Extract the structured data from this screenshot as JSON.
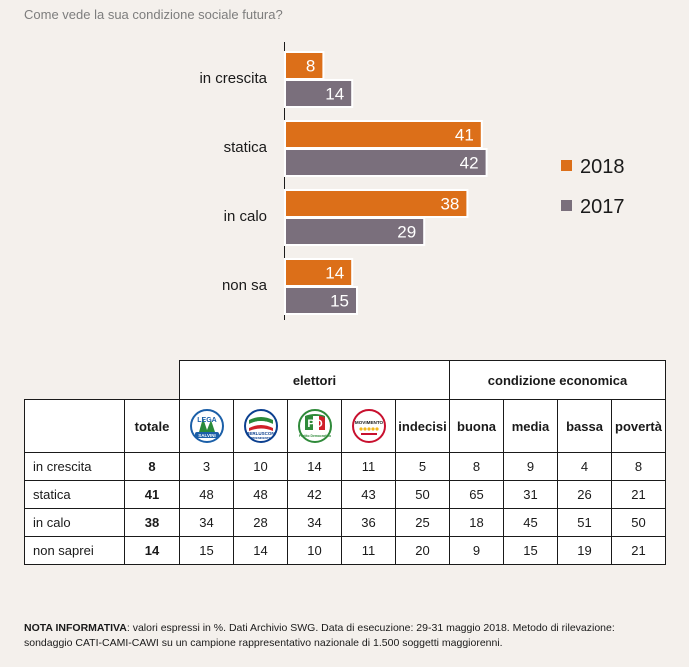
{
  "title": "Come vede la sua condizione sociale futura?",
  "chart_data": {
    "type": "bar",
    "orientation": "horizontal",
    "categories": [
      "in crescita",
      "statica",
      "in calo",
      "non sa"
    ],
    "series": [
      {
        "name": "2018",
        "values": [
          8,
          41,
          38,
          14
        ],
        "color": "#dc6f19"
      },
      {
        "name": "2017",
        "values": [
          14,
          42,
          29,
          15
        ],
        "color": "#7a6f7c"
      }
    ],
    "xlim": [
      0,
      45
    ],
    "grid": false,
    "legend": "right"
  },
  "table": {
    "group_headers": {
      "elettori": "elettori",
      "condizione": "condizione economica"
    },
    "columns": {
      "totale": "totale",
      "parties": [
        {
          "logo": "lega-salvini-logo",
          "text": "LEGA",
          "sub": "SALVINI",
          "color": "#1b5fa8"
        },
        {
          "logo": "forza-italia-logo",
          "text": "BERLUSCONI",
          "sub": "PRESIDENTE",
          "color": "#0b3f8f"
        },
        {
          "logo": "partito-democratico-logo",
          "text": "PD",
          "sub": "Partito Democratico",
          "color": "#2f8a3a"
        },
        {
          "logo": "movimento-5-stelle-logo",
          "text": "MOVIMENTO",
          "sub": "",
          "color": "#c8102e"
        }
      ],
      "indecisi": "indecisi",
      "buona": "buona",
      "media": "media",
      "bassa": "bassa",
      "poverta": "povertà"
    },
    "rows": [
      {
        "label": "in crescita",
        "totale": "8",
        "values": [
          "3",
          "10",
          "14",
          "11",
          "5",
          "8",
          "9",
          "4",
          "8"
        ]
      },
      {
        "label": "statica",
        "totale": "41",
        "values": [
          "48",
          "48",
          "42",
          "43",
          "50",
          "65",
          "31",
          "26",
          "21"
        ]
      },
      {
        "label": "in calo",
        "totale": "38",
        "values": [
          "34",
          "28",
          "34",
          "36",
          "25",
          "18",
          "45",
          "51",
          "50"
        ]
      },
      {
        "label": "non saprei",
        "totale": "14",
        "values": [
          "15",
          "14",
          "10",
          "11",
          "20",
          "9",
          "15",
          "19",
          "21"
        ]
      }
    ]
  },
  "note": {
    "label": "NOTA INFORMATIVA",
    "text": ": valori espressi in %. Dati Archivio SWG. Data di esecuzione: 29-31 maggio 2018. Metodo di rilevazione: sondaggio CATI-CAMI-CAWI su un campione rappresentativo nazionale di 1.500 soggetti maggiorenni."
  }
}
